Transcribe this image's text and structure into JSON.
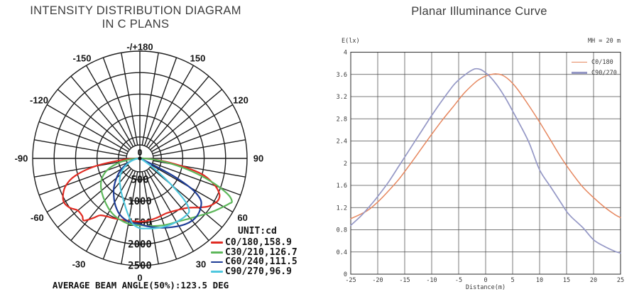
{
  "chart_data": [
    {
      "id": "intensity-distribution-polar",
      "type": "line",
      "polar": true,
      "title": "INTENSITY DISTRIBUTION DIAGRAM",
      "subtitle": "IN C PLANS",
      "unit_label": "UNIT:cd",
      "footer": "AVERAGE BEAM ANGLE(50%):123.5 DEG",
      "center_label": "0",
      "r_max": 2500,
      "r_tick_step": 500,
      "ring_labels": [
        "500",
        "1000",
        "1500",
        "2000",
        "2500"
      ],
      "angle_zero_position": "bottom",
      "angle_step_deg": 10,
      "angle_labels": [
        {
          "text": "-/+180",
          "deg": 180
        },
        {
          "text": "-150",
          "deg": -150
        },
        {
          "text": "150",
          "deg": 150
        },
        {
          "text": "-120",
          "deg": -120
        },
        {
          "text": "120",
          "deg": 120
        },
        {
          "text": "-90",
          "deg": -90
        },
        {
          "text": "90",
          "deg": 90
        },
        {
          "text": "-60",
          "deg": -60
        },
        {
          "text": "60",
          "deg": 60
        },
        {
          "text": "-30",
          "deg": -30
        },
        {
          "text": "30",
          "deg": 30
        },
        {
          "text": "0",
          "deg": 0
        }
      ],
      "series": [
        {
          "name": "C0/180,158.9",
          "color": "#e02b22",
          "points": [
            [
              -90,
              80
            ],
            [
              -85,
              430
            ],
            [
              -80,
              1060
            ],
            [
              -75,
              1560
            ],
            [
              -70,
              1830
            ],
            [
              -65,
              1975
            ],
            [
              -60,
              2045
            ],
            [
              -55,
              2000
            ],
            [
              -50,
              1890
            ],
            [
              -45,
              1900
            ],
            [
              -42,
              1950
            ],
            [
              -38,
              1760
            ],
            [
              -35,
              1620
            ],
            [
              -30,
              1560
            ],
            [
              -25,
              1530
            ],
            [
              -20,
              1505
            ],
            [
              -15,
              1490
            ],
            [
              -10,
              1478
            ],
            [
              -5,
              1472
            ],
            [
              0,
              1475
            ],
            [
              5,
              1468
            ],
            [
              10,
              1455
            ],
            [
              15,
              1442
            ],
            [
              20,
              1428
            ],
            [
              25,
              1418
            ],
            [
              30,
              1440
            ],
            [
              35,
              1480
            ],
            [
              40,
              1535
            ],
            [
              45,
              1625
            ],
            [
              50,
              1780
            ],
            [
              55,
              1950
            ],
            [
              60,
              2050
            ],
            [
              63,
              2070
            ],
            [
              66,
              2030
            ],
            [
              70,
              1870
            ],
            [
              75,
              1560
            ],
            [
              78,
              1210
            ],
            [
              82,
              700
            ],
            [
              86,
              300
            ],
            [
              90,
              60
            ]
          ]
        },
        {
          "name": "C30/210,126.7",
          "color": "#5db75a",
          "points": [
            [
              -90,
              50
            ],
            [
              -85,
              210
            ],
            [
              -80,
              430
            ],
            [
              -75,
              640
            ],
            [
              -70,
              820
            ],
            [
              -65,
              945
            ],
            [
              -60,
              1040
            ],
            [
              -55,
              1110
            ],
            [
              -50,
              1170
            ],
            [
              -45,
              1225
            ],
            [
              -40,
              1280
            ],
            [
              -35,
              1340
            ],
            [
              -30,
              1400
            ],
            [
              -25,
              1450
            ],
            [
              -20,
              1490
            ],
            [
              -15,
              1520
            ],
            [
              -10,
              1545
            ],
            [
              -5,
              1555
            ],
            [
              0,
              1560
            ],
            [
              5,
              1575
            ],
            [
              10,
              1600
            ],
            [
              15,
              1625
            ],
            [
              20,
              1655
            ],
            [
              25,
              1680
            ],
            [
              30,
              1710
            ],
            [
              35,
              1760
            ],
            [
              40,
              1825
            ],
            [
              45,
              1905
            ],
            [
              50,
              2010
            ],
            [
              55,
              2130
            ],
            [
              60,
              2250
            ],
            [
              63,
              2330
            ],
            [
              65,
              2370
            ],
            [
              68,
              2200
            ],
            [
              72,
              1750
            ],
            [
              76,
              1250
            ],
            [
              80,
              780
            ],
            [
              85,
              350
            ],
            [
              90,
              80
            ]
          ]
        },
        {
          "name": "C60/240,111.5",
          "color": "#1e3d96",
          "points": [
            [
              -90,
              10
            ],
            [
              -85,
              60
            ],
            [
              -80,
              130
            ],
            [
              -75,
              200
            ],
            [
              -70,
              280
            ],
            [
              -65,
              380
            ],
            [
              -60,
              490
            ],
            [
              -55,
              600
            ],
            [
              -50,
              710
            ],
            [
              -45,
              830
            ],
            [
              -40,
              950
            ],
            [
              -35,
              1060
            ],
            [
              -30,
              1180
            ],
            [
              -25,
              1290
            ],
            [
              -20,
              1385
            ],
            [
              -15,
              1450
            ],
            [
              -10,
              1495
            ],
            [
              -5,
              1515
            ],
            [
              0,
              1530
            ],
            [
              5,
              1580
            ],
            [
              10,
              1625
            ],
            [
              15,
              1672
            ],
            [
              20,
              1720
            ],
            [
              25,
              1768
            ],
            [
              30,
              1820
            ],
            [
              35,
              1868
            ],
            [
              40,
              1895
            ],
            [
              45,
              1890
            ],
            [
              50,
              1840
            ],
            [
              55,
              1745
            ],
            [
              58,
              1570
            ],
            [
              60,
              1340
            ],
            [
              62,
              950
            ],
            [
              63,
              620
            ],
            [
              64,
              330
            ],
            [
              66,
              90
            ]
          ]
        },
        {
          "name": "C90/270,96.9",
          "color": "#4ec7de",
          "points": [
            [
              -88,
              20
            ],
            [
              -80,
              120
            ],
            [
              -70,
              260
            ],
            [
              -60,
              420
            ],
            [
              -52,
              560
            ],
            [
              -45,
              660
            ],
            [
              -40,
              730
            ],
            [
              -36,
              780
            ],
            [
              -30,
              880
            ],
            [
              -25,
              970
            ],
            [
              -20,
              1080
            ],
            [
              -15,
              1230
            ],
            [
              -12,
              1330
            ],
            [
              -8,
              1480
            ],
            [
              -5,
              1560
            ],
            [
              0,
              1628
            ],
            [
              5,
              1640
            ],
            [
              10,
              1660
            ],
            [
              15,
              1678
            ],
            [
              20,
              1692
            ],
            [
              25,
              1702
            ],
            [
              30,
              1710
            ],
            [
              35,
              1715
            ],
            [
              40,
              1710
            ],
            [
              43,
              1685
            ],
            [
              46,
              1520
            ],
            [
              48,
              1270
            ],
            [
              50,
              960
            ],
            [
              52,
              660
            ],
            [
              55,
              360
            ],
            [
              58,
              160
            ],
            [
              62,
              50
            ]
          ]
        }
      ]
    },
    {
      "id": "planar-illuminance-curve",
      "type": "line",
      "title": "Planar Illuminance Curve",
      "ylabel": "E(lx)",
      "xlabel": "Distance(m)",
      "annotation": "MH = 20 m",
      "xlim": [
        -25,
        25
      ],
      "ylim": [
        0,
        4
      ],
      "grid": true,
      "legend_position": "top-right",
      "xtick_labels": [
        "-25",
        "-20",
        "-15",
        "-10",
        "-5",
        "0",
        "5",
        "10",
        "15",
        "20",
        "25"
      ],
      "xticks": [
        -25,
        -20,
        -15,
        -10,
        -5,
        0,
        5,
        10,
        15,
        20,
        25
      ],
      "ytick_labels": [
        "0",
        "0.4",
        "0.8",
        "1.2",
        "1.6",
        "2",
        "2.4",
        "2.8",
        "3.2",
        "3.6",
        "4"
      ],
      "yticks": [
        0,
        0.4,
        0.8,
        1.2,
        1.6,
        2,
        2.4,
        2.8,
        3.2,
        3.6,
        4
      ],
      "series": [
        {
          "name": "C0/180",
          "color": "#e6875f",
          "points": [
            [
              -25,
              1.0
            ],
            [
              -22,
              1.14
            ],
            [
              -20,
              1.3
            ],
            [
              -18,
              1.5
            ],
            [
              -16,
              1.72
            ],
            [
              -14,
              1.98
            ],
            [
              -12,
              2.25
            ],
            [
              -10,
              2.52
            ],
            [
              -8,
              2.78
            ],
            [
              -6,
              3.02
            ],
            [
              -4,
              3.26
            ],
            [
              -2,
              3.45
            ],
            [
              -1,
              3.52
            ],
            [
              0,
              3.57
            ],
            [
              1,
              3.6
            ],
            [
              2,
              3.61
            ],
            [
              3,
              3.59
            ],
            [
              4,
              3.53
            ],
            [
              5,
              3.44
            ],
            [
              6,
              3.32
            ],
            [
              8,
              3.04
            ],
            [
              10,
              2.74
            ],
            [
              12,
              2.42
            ],
            [
              14,
              2.1
            ],
            [
              16,
              1.82
            ],
            [
              18,
              1.57
            ],
            [
              20,
              1.38
            ],
            [
              22,
              1.21
            ],
            [
              24,
              1.07
            ],
            [
              25,
              1.02
            ]
          ]
        },
        {
          "name": "C90/270",
          "color": "#9598c6",
          "points": [
            [
              -25,
              0.88
            ],
            [
              -23,
              1.06
            ],
            [
              -21,
              1.28
            ],
            [
              -20,
              1.4
            ],
            [
              -18,
              1.66
            ],
            [
              -16,
              1.96
            ],
            [
              -14,
              2.26
            ],
            [
              -12,
              2.56
            ],
            [
              -10,
              2.86
            ],
            [
              -8,
              3.14
            ],
            [
              -6,
              3.4
            ],
            [
              -5,
              3.5
            ],
            [
              -4,
              3.58
            ],
            [
              -3,
              3.65
            ],
            [
              -2,
              3.7
            ],
            [
              -1,
              3.69
            ],
            [
              0,
              3.63
            ],
            [
              1,
              3.54
            ],
            [
              2,
              3.42
            ],
            [
              3,
              3.28
            ],
            [
              4,
              3.12
            ],
            [
              5,
              2.94
            ],
            [
              6,
              2.76
            ],
            [
              8,
              2.38
            ],
            [
              10,
              1.88
            ],
            [
              12,
              1.58
            ],
            [
              14,
              1.28
            ],
            [
              15,
              1.13
            ],
            [
              16,
              1.02
            ],
            [
              18,
              0.84
            ],
            [
              20,
              0.62
            ],
            [
              22,
              0.5
            ],
            [
              24,
              0.41
            ],
            [
              25,
              0.38
            ]
          ]
        }
      ]
    }
  ]
}
